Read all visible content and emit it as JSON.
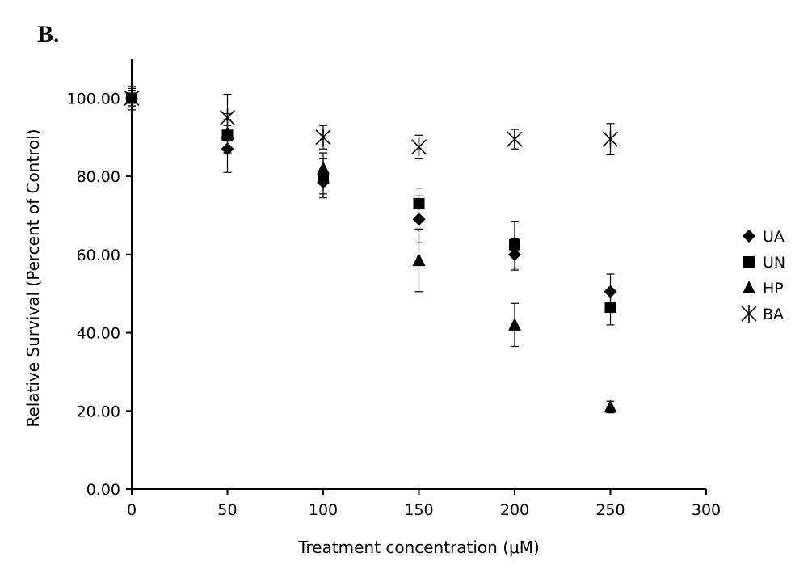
{
  "panel_label": "B.",
  "chart_data": {
    "type": "scatter",
    "title": "",
    "xlabel": "Treatment concentration (μM)",
    "ylabel": "Relative Survival (Percent of Control)",
    "xlim": [
      0,
      300
    ],
    "ylim": [
      0,
      110
    ],
    "x_ticks": [
      0,
      50,
      100,
      150,
      200,
      250,
      300
    ],
    "x_tick_labels": [
      "0",
      "50",
      "100",
      "150",
      "200",
      "250",
      "300"
    ],
    "y_ticks": [
      0,
      20,
      40,
      60,
      80,
      100
    ],
    "y_tick_labels": [
      "0.00",
      "20.00",
      "40.00",
      "60.00",
      "80.00",
      "100.00"
    ],
    "grid": false,
    "legend_position": "right",
    "series": [
      {
        "name": "UA",
        "marker": "diamond",
        "color": "#000000",
        "x": [
          0,
          50,
          100,
          150,
          200,
          250
        ],
        "y": [
          100,
          87,
          78.5,
          69,
          60,
          50.5
        ],
        "error": [
          2,
          6,
          3,
          6,
          4,
          4.5
        ]
      },
      {
        "name": "UN",
        "marker": "square",
        "color": "#000000",
        "x": [
          0,
          50,
          100,
          150,
          200,
          250
        ],
        "y": [
          100,
          90.5,
          79.5,
          73,
          62.5,
          46.5
        ],
        "error": [
          3,
          4,
          5,
          4,
          6,
          4.5
        ]
      },
      {
        "name": "HP",
        "marker": "triangle",
        "color": "#000000",
        "x": [
          0,
          50,
          100,
          150,
          200,
          250
        ],
        "y": [
          100,
          91,
          82,
          58.5,
          42,
          21
        ],
        "error": [
          2,
          5,
          4,
          8,
          5.5,
          1.5
        ]
      },
      {
        "name": "BA",
        "marker": "asterisk",
        "color": "#000000",
        "x": [
          0,
          50,
          100,
          150,
          200,
          250
        ],
        "y": [
          100,
          95,
          90,
          87.5,
          89.5,
          89.5
        ],
        "error": [
          2.5,
          6,
          3,
          3,
          2.5,
          4
        ]
      }
    ]
  }
}
